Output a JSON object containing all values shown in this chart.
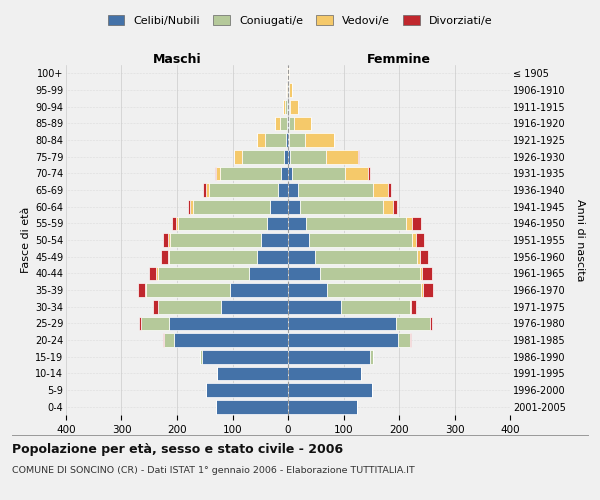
{
  "age_groups": [
    "0-4",
    "5-9",
    "10-14",
    "15-19",
    "20-24",
    "25-29",
    "30-34",
    "35-39",
    "40-44",
    "45-49",
    "50-54",
    "55-59",
    "60-64",
    "65-69",
    "70-74",
    "75-79",
    "80-84",
    "85-89",
    "90-94",
    "95-99",
    "100+"
  ],
  "birth_years": [
    "2001-2005",
    "1996-2000",
    "1991-1995",
    "1986-1990",
    "1981-1985",
    "1976-1980",
    "1971-1975",
    "1966-1970",
    "1961-1965",
    "1956-1960",
    "1951-1955",
    "1946-1950",
    "1941-1945",
    "1936-1940",
    "1931-1935",
    "1926-1930",
    "1921-1925",
    "1916-1920",
    "1911-1915",
    "1906-1910",
    "≤ 1905"
  ],
  "males": {
    "celibi": [
      130,
      148,
      128,
      155,
      205,
      215,
      120,
      105,
      70,
      55,
      48,
      38,
      32,
      18,
      12,
      8,
      4,
      2,
      1,
      1,
      0
    ],
    "coniugati": [
      0,
      0,
      0,
      4,
      18,
      50,
      115,
      150,
      165,
      160,
      165,
      160,
      140,
      125,
      110,
      75,
      38,
      12,
      4,
      1,
      0
    ],
    "vedovi": [
      0,
      0,
      0,
      0,
      0,
      0,
      0,
      2,
      2,
      2,
      3,
      3,
      4,
      5,
      8,
      14,
      14,
      9,
      4,
      2,
      1
    ],
    "divorziati": [
      0,
      0,
      0,
      0,
      2,
      4,
      8,
      14,
      14,
      11,
      9,
      8,
      5,
      5,
      2,
      1,
      0,
      0,
      0,
      0,
      0
    ]
  },
  "females": {
    "nubili": [
      125,
      152,
      132,
      148,
      198,
      195,
      95,
      70,
      58,
      48,
      38,
      33,
      22,
      18,
      8,
      4,
      2,
      2,
      1,
      1,
      0
    ],
    "coniugate": [
      0,
      0,
      0,
      5,
      22,
      60,
      125,
      170,
      180,
      185,
      185,
      180,
      150,
      135,
      95,
      65,
      28,
      8,
      3,
      1,
      0
    ],
    "vedove": [
      0,
      0,
      0,
      0,
      0,
      0,
      2,
      3,
      4,
      5,
      8,
      10,
      18,
      28,
      42,
      58,
      52,
      32,
      14,
      5,
      2
    ],
    "divorziate": [
      0,
      0,
      0,
      0,
      2,
      4,
      8,
      18,
      17,
      14,
      14,
      17,
      7,
      5,
      2,
      1,
      0,
      0,
      0,
      0,
      0
    ]
  },
  "colors": {
    "celibi": "#4472a8",
    "coniugati": "#b5c99a",
    "vedovi": "#f5c96a",
    "divorziati": "#c0272d"
  },
  "xlim": 400,
  "title": "Popolazione per età, sesso e stato civile - 2006",
  "subtitle": "COMUNE DI SONCINO (CR) - Dati ISTAT 1° gennaio 2006 - Elaborazione TUTTITALIA.IT",
  "ylabel_left": "Fasce di età",
  "ylabel_right": "Anni di nascita",
  "xlabel_maschi": "Maschi",
  "xlabel_femmine": "Femmine",
  "legend_labels": [
    "Celibi/Nubili",
    "Coniugati/e",
    "Vedovi/e",
    "Divorziati/e"
  ],
  "bg_color": "#f0f0f0",
  "fig_bg": "#f0f0f0"
}
